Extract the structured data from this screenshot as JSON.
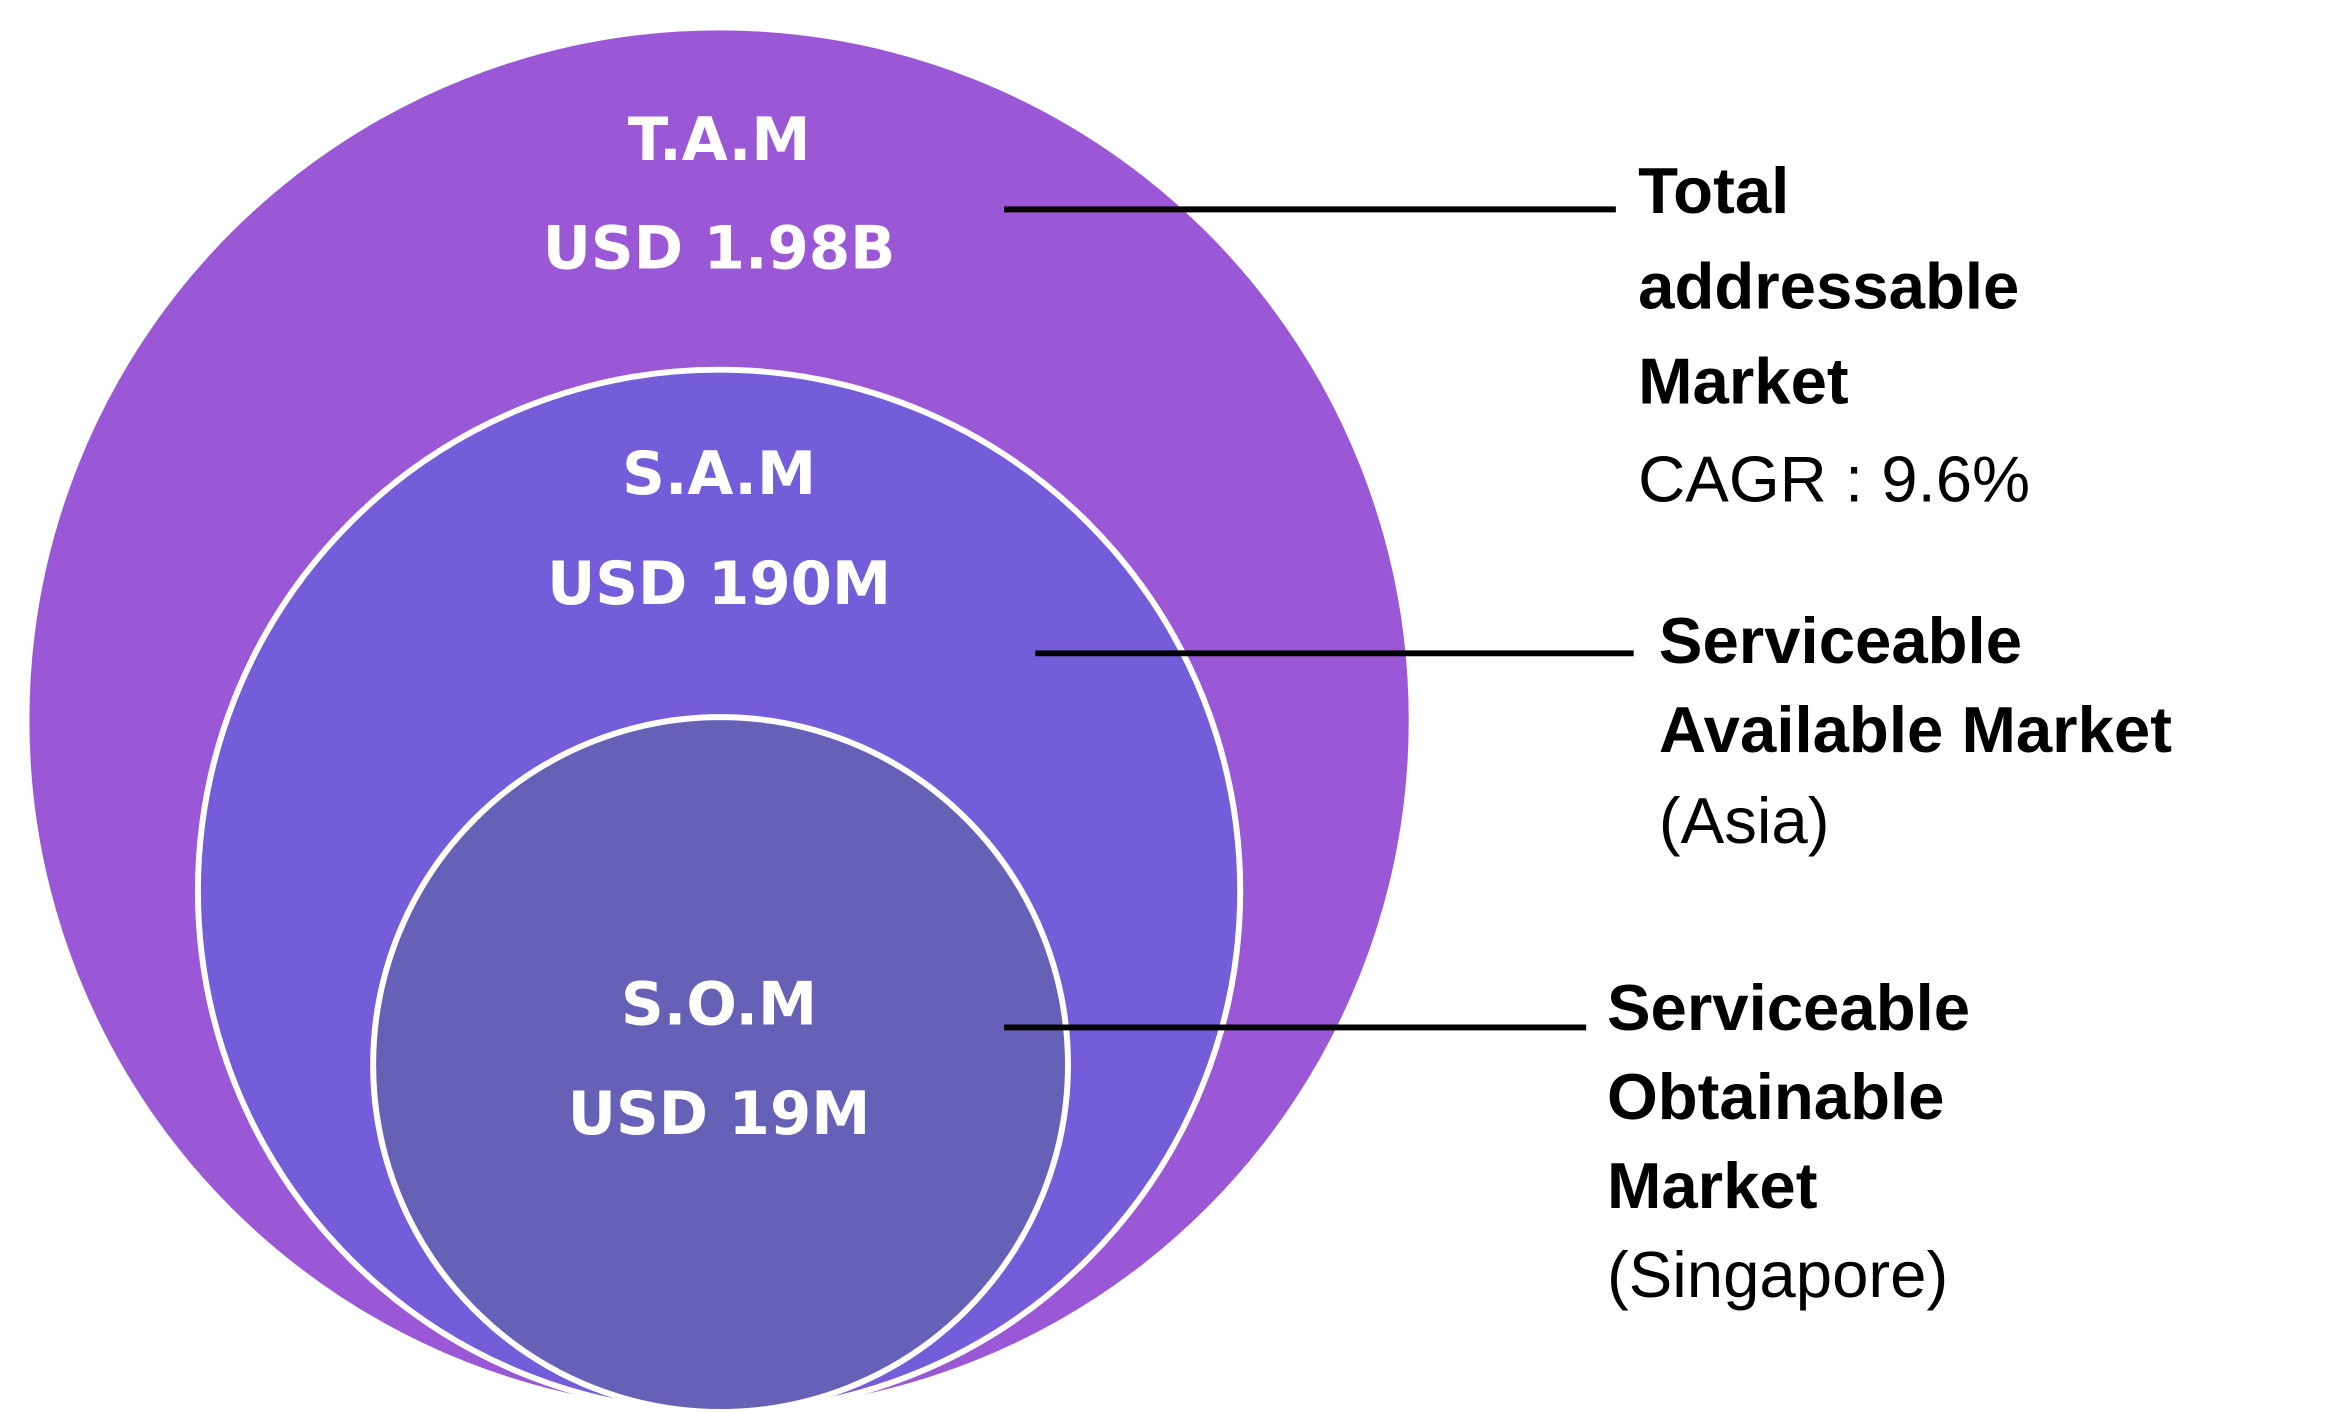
{
  "markets": [
    {
      "abbr": "T.A.M",
      "value": "USD 1.98B",
      "name_lines": [
        "Total",
        "addressable",
        "Market"
      ],
      "detail": "CAGR : 9.6%"
    },
    {
      "abbr": "S.A.M",
      "value": "USD 190M",
      "name_lines": [
        "Serviceable",
        "Available Market"
      ],
      "detail": "(Asia)"
    },
    {
      "abbr": "S.O.M",
      "value": "USD 19M",
      "name_lines": [
        "Serviceable",
        "Obtainable",
        "Market"
      ],
      "detail": "(Singapore)"
    }
  ]
}
